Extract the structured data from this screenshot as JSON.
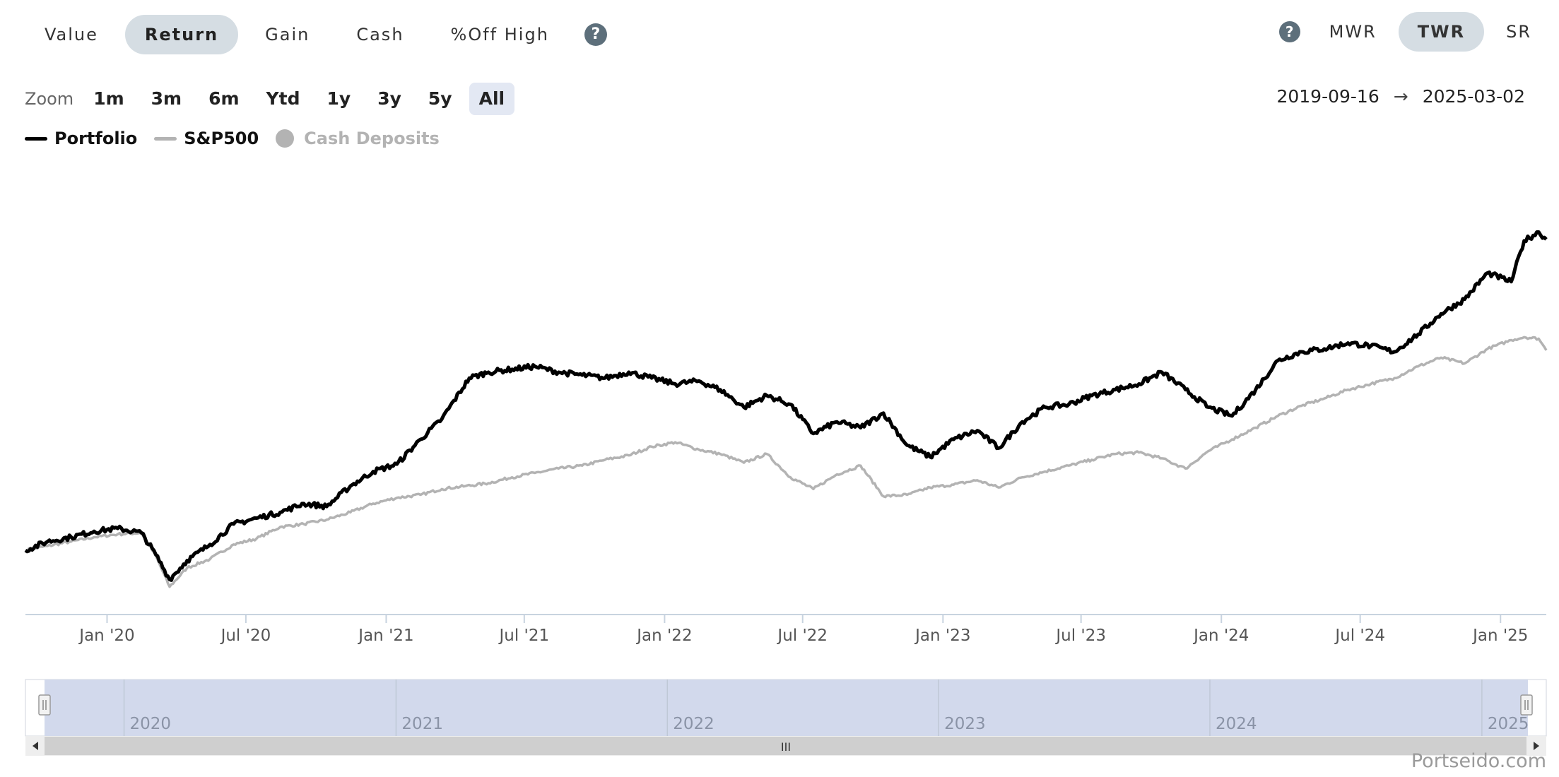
{
  "tabs": [
    {
      "label": "Value",
      "active": false
    },
    {
      "label": "Return",
      "active": true
    },
    {
      "label": "Gain",
      "active": false
    },
    {
      "label": "Cash",
      "active": false
    },
    {
      "label": "%Off High",
      "active": false
    }
  ],
  "help_icon": "?",
  "method_tabs": [
    {
      "label": "MWR",
      "active": false
    },
    {
      "label": "TWR",
      "active": true
    },
    {
      "label": "SR",
      "active": false
    }
  ],
  "zoom": {
    "label": "Zoom",
    "options": [
      "1m",
      "3m",
      "6m",
      "Ytd",
      "1y",
      "3y",
      "5y",
      "All"
    ],
    "selected": "All"
  },
  "date_range": {
    "start": "2019-09-16",
    "arrow": "→",
    "end": "2025-03-02"
  },
  "legend": [
    {
      "label": "Portfolio",
      "color": "#000000"
    },
    {
      "label": "S&P500",
      "color": "#b3b3b3"
    },
    {
      "label": "Cash Deposits",
      "color": "#b3b3b3"
    }
  ],
  "chart_data": {
    "type": "line",
    "x_ticks": [
      "Jan '20",
      "Jul '20",
      "Jan '21",
      "Jul '21",
      "Jan '22",
      "Jul '22",
      "Jan '23",
      "Jul '23",
      "Jan '24",
      "Jul '24",
      "Jan '25"
    ],
    "x_range": [
      "2019-09-16",
      "2025-03-02"
    ],
    "series": [
      {
        "name": "Portfolio",
        "color": "#000000",
        "points": [
          [
            "2019-09-16",
            2.0
          ],
          [
            "2019-10-15",
            5.0
          ],
          [
            "2019-11-15",
            6.5
          ],
          [
            "2019-12-15",
            8.5
          ],
          [
            "2020-01-15",
            9.5
          ],
          [
            "2020-02-15",
            8.0
          ],
          [
            "2020-03-05",
            0.5
          ],
          [
            "2020-03-23",
            -8.0
          ],
          [
            "2020-04-15",
            -1.5
          ],
          [
            "2020-05-15",
            4.0
          ],
          [
            "2020-06-15",
            11.0
          ],
          [
            "2020-07-15",
            13.0
          ],
          [
            "2020-08-15",
            15.0
          ],
          [
            "2020-09-15",
            18.0
          ],
          [
            "2020-10-15",
            17.0
          ],
          [
            "2020-11-15",
            24.0
          ],
          [
            "2020-12-15",
            29.0
          ],
          [
            "2021-01-15",
            31.5
          ],
          [
            "2021-02-15",
            40.0
          ],
          [
            "2021-03-15",
            47.0
          ],
          [
            "2021-04-20",
            61.0
          ],
          [
            "2021-05-15",
            63.0
          ],
          [
            "2021-06-15",
            64.0
          ],
          [
            "2021-07-15",
            65.0
          ],
          [
            "2021-08-15",
            63.0
          ],
          [
            "2021-09-15",
            62.0
          ],
          [
            "2021-10-15",
            61.0
          ],
          [
            "2021-11-15",
            63.0
          ],
          [
            "2021-12-15",
            61.0
          ],
          [
            "2022-01-15",
            59.0
          ],
          [
            "2022-02-15",
            60.0
          ],
          [
            "2022-03-15",
            57.0
          ],
          [
            "2022-04-15",
            51.0
          ],
          [
            "2022-05-15",
            55.0
          ],
          [
            "2022-06-15",
            52.0
          ],
          [
            "2022-07-15",
            42.0
          ],
          [
            "2022-08-15",
            46.0
          ],
          [
            "2022-09-15",
            44.0
          ],
          [
            "2022-10-15",
            49.0
          ],
          [
            "2022-11-15",
            38.0
          ],
          [
            "2022-12-15",
            34.0
          ],
          [
            "2023-01-15",
            40.0
          ],
          [
            "2023-02-15",
            43.0
          ],
          [
            "2023-03-15",
            37.0
          ],
          [
            "2023-04-15",
            46.0
          ],
          [
            "2023-05-15",
            51.0
          ],
          [
            "2023-06-15",
            52.0
          ],
          [
            "2023-07-15",
            55.0
          ],
          [
            "2023-08-15",
            57.0
          ],
          [
            "2023-09-15",
            59.0
          ],
          [
            "2023-10-15",
            63.0
          ],
          [
            "2023-11-15",
            57.0
          ],
          [
            "2023-12-15",
            51.0
          ],
          [
            "2024-01-15",
            48.0
          ],
          [
            "2024-02-15",
            57.0
          ],
          [
            "2024-03-15",
            67.0
          ],
          [
            "2024-04-15",
            70.0
          ],
          [
            "2024-05-15",
            71.0
          ],
          [
            "2024-06-15",
            73.0
          ],
          [
            "2024-07-15",
            72.0
          ],
          [
            "2024-08-15",
            70.0
          ],
          [
            "2024-09-15",
            76.0
          ],
          [
            "2024-10-15",
            83.0
          ],
          [
            "2024-11-15",
            88.0
          ],
          [
            "2024-12-15",
            97.0
          ],
          [
            "2025-01-15",
            94.0
          ],
          [
            "2025-02-01",
            108.0
          ],
          [
            "2025-02-20",
            111.0
          ],
          [
            "2025-03-02",
            108.5
          ]
        ]
      },
      {
        "name": "S&P500",
        "color": "#b3b3b3",
        "points": [
          [
            "2019-09-16",
            2.0
          ],
          [
            "2019-10-15",
            3.5
          ],
          [
            "2019-11-15",
            5.0
          ],
          [
            "2019-12-15",
            6.5
          ],
          [
            "2020-01-15",
            7.5
          ],
          [
            "2020-02-15",
            8.0
          ],
          [
            "2020-03-05",
            0.0
          ],
          [
            "2020-03-23",
            -10.5
          ],
          [
            "2020-04-15",
            -4.0
          ],
          [
            "2020-05-15",
            -1.0
          ],
          [
            "2020-06-15",
            4.0
          ],
          [
            "2020-07-15",
            6.0
          ],
          [
            "2020-08-15",
            10.0
          ],
          [
            "2020-09-15",
            11.0
          ],
          [
            "2020-10-15",
            12.5
          ],
          [
            "2020-11-15",
            15.0
          ],
          [
            "2020-12-15",
            18.0
          ],
          [
            "2021-01-15",
            20.0
          ],
          [
            "2021-02-15",
            21.0
          ],
          [
            "2021-03-15",
            23.0
          ],
          [
            "2021-04-15",
            24.0
          ],
          [
            "2021-05-15",
            25.0
          ],
          [
            "2021-06-15",
            27.0
          ],
          [
            "2021-07-15",
            28.5
          ],
          [
            "2021-08-15",
            30.0
          ],
          [
            "2021-09-15",
            31.0
          ],
          [
            "2021-10-15",
            33.0
          ],
          [
            "2021-11-15",
            34.5
          ],
          [
            "2021-12-15",
            37.5
          ],
          [
            "2022-01-15",
            39.0
          ],
          [
            "2022-02-15",
            36.5
          ],
          [
            "2022-03-15",
            35.0
          ],
          [
            "2022-04-15",
            32.0
          ],
          [
            "2022-05-15",
            35.0
          ],
          [
            "2022-06-15",
            27.0
          ],
          [
            "2022-07-15",
            23.0
          ],
          [
            "2022-08-15",
            28.0
          ],
          [
            "2022-09-15",
            31.0
          ],
          [
            "2022-10-15",
            20.5
          ],
          [
            "2022-11-15",
            21.0
          ],
          [
            "2022-12-15",
            23.5
          ],
          [
            "2023-01-15",
            24.5
          ],
          [
            "2023-02-15",
            26.0
          ],
          [
            "2023-03-15",
            23.5
          ],
          [
            "2023-04-15",
            27.0
          ],
          [
            "2023-05-15",
            29.0
          ],
          [
            "2023-06-15",
            31.0
          ],
          [
            "2023-07-15",
            33.0
          ],
          [
            "2023-08-15",
            35.0
          ],
          [
            "2023-09-15",
            35.5
          ],
          [
            "2023-10-15",
            33.5
          ],
          [
            "2023-11-15",
            30.0
          ],
          [
            "2023-12-15",
            36.0
          ],
          [
            "2024-01-15",
            40.0
          ],
          [
            "2024-02-15",
            44.0
          ],
          [
            "2024-03-15",
            48.0
          ],
          [
            "2024-04-15",
            51.5
          ],
          [
            "2024-05-15",
            54.0
          ],
          [
            "2024-06-15",
            57.0
          ],
          [
            "2024-07-15",
            59.0
          ],
          [
            "2024-08-15",
            61.0
          ],
          [
            "2024-09-15",
            65.0
          ],
          [
            "2024-10-15",
            68.0
          ],
          [
            "2024-11-15",
            66.0
          ],
          [
            "2024-12-15",
            71.0
          ],
          [
            "2025-01-15",
            74.0
          ],
          [
            "2025-02-01",
            75.0
          ],
          [
            "2025-02-20",
            74.5
          ],
          [
            "2025-03-02",
            70.5
          ]
        ]
      }
    ],
    "navigator": {
      "year_labels": [
        "2020",
        "2021",
        "2022",
        "2023",
        "2024",
        "2025"
      ],
      "scroll_grip": "III"
    },
    "legend_position": "top-left",
    "grid": false
  },
  "watermark": "Portseido.com"
}
